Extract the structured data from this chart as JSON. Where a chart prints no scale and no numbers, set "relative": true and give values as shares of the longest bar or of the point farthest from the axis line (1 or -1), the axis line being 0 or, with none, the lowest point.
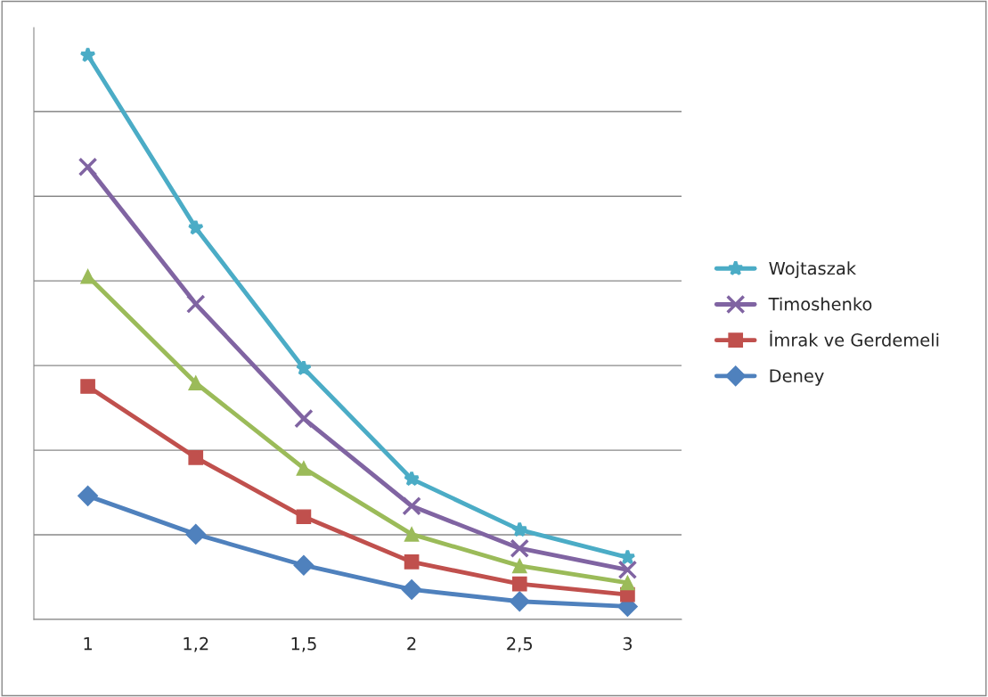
{
  "chart_data": {
    "type": "line",
    "relative": true,
    "categories": [
      "1",
      "1,2",
      "1,5",
      "2",
      "2,5",
      "3"
    ],
    "series": [
      {
        "name": "Deney",
        "color": "#4f81bd",
        "marker": "diamond",
        "values": [
          0.219,
          0.151,
          0.096,
          0.053,
          0.032,
          0.023
        ]
      },
      {
        "name": "İmrak ve Gerdemeli",
        "color": "#c0504d",
        "marker": "square",
        "values": [
          0.413,
          0.287,
          0.182,
          0.102,
          0.063,
          0.044
        ]
      },
      {
        "color": "#9bbb59",
        "marker": "triangle",
        "values": [
          0.608,
          0.419,
          0.268,
          0.151,
          0.095,
          0.065
        ]
      },
      {
        "name": "Timoshenko",
        "color": "#8064a2",
        "marker": "cross",
        "values": [
          0.802,
          0.559,
          0.356,
          0.201,
          0.126,
          0.088
        ]
      },
      {
        "name": "Wojtaszak",
        "color": "#4bacc6",
        "marker": "star",
        "values": [
          1,
          0.694,
          0.445,
          0.249,
          0.159,
          0.11
        ]
      }
    ],
    "grid": "y",
    "legend": "right"
  }
}
